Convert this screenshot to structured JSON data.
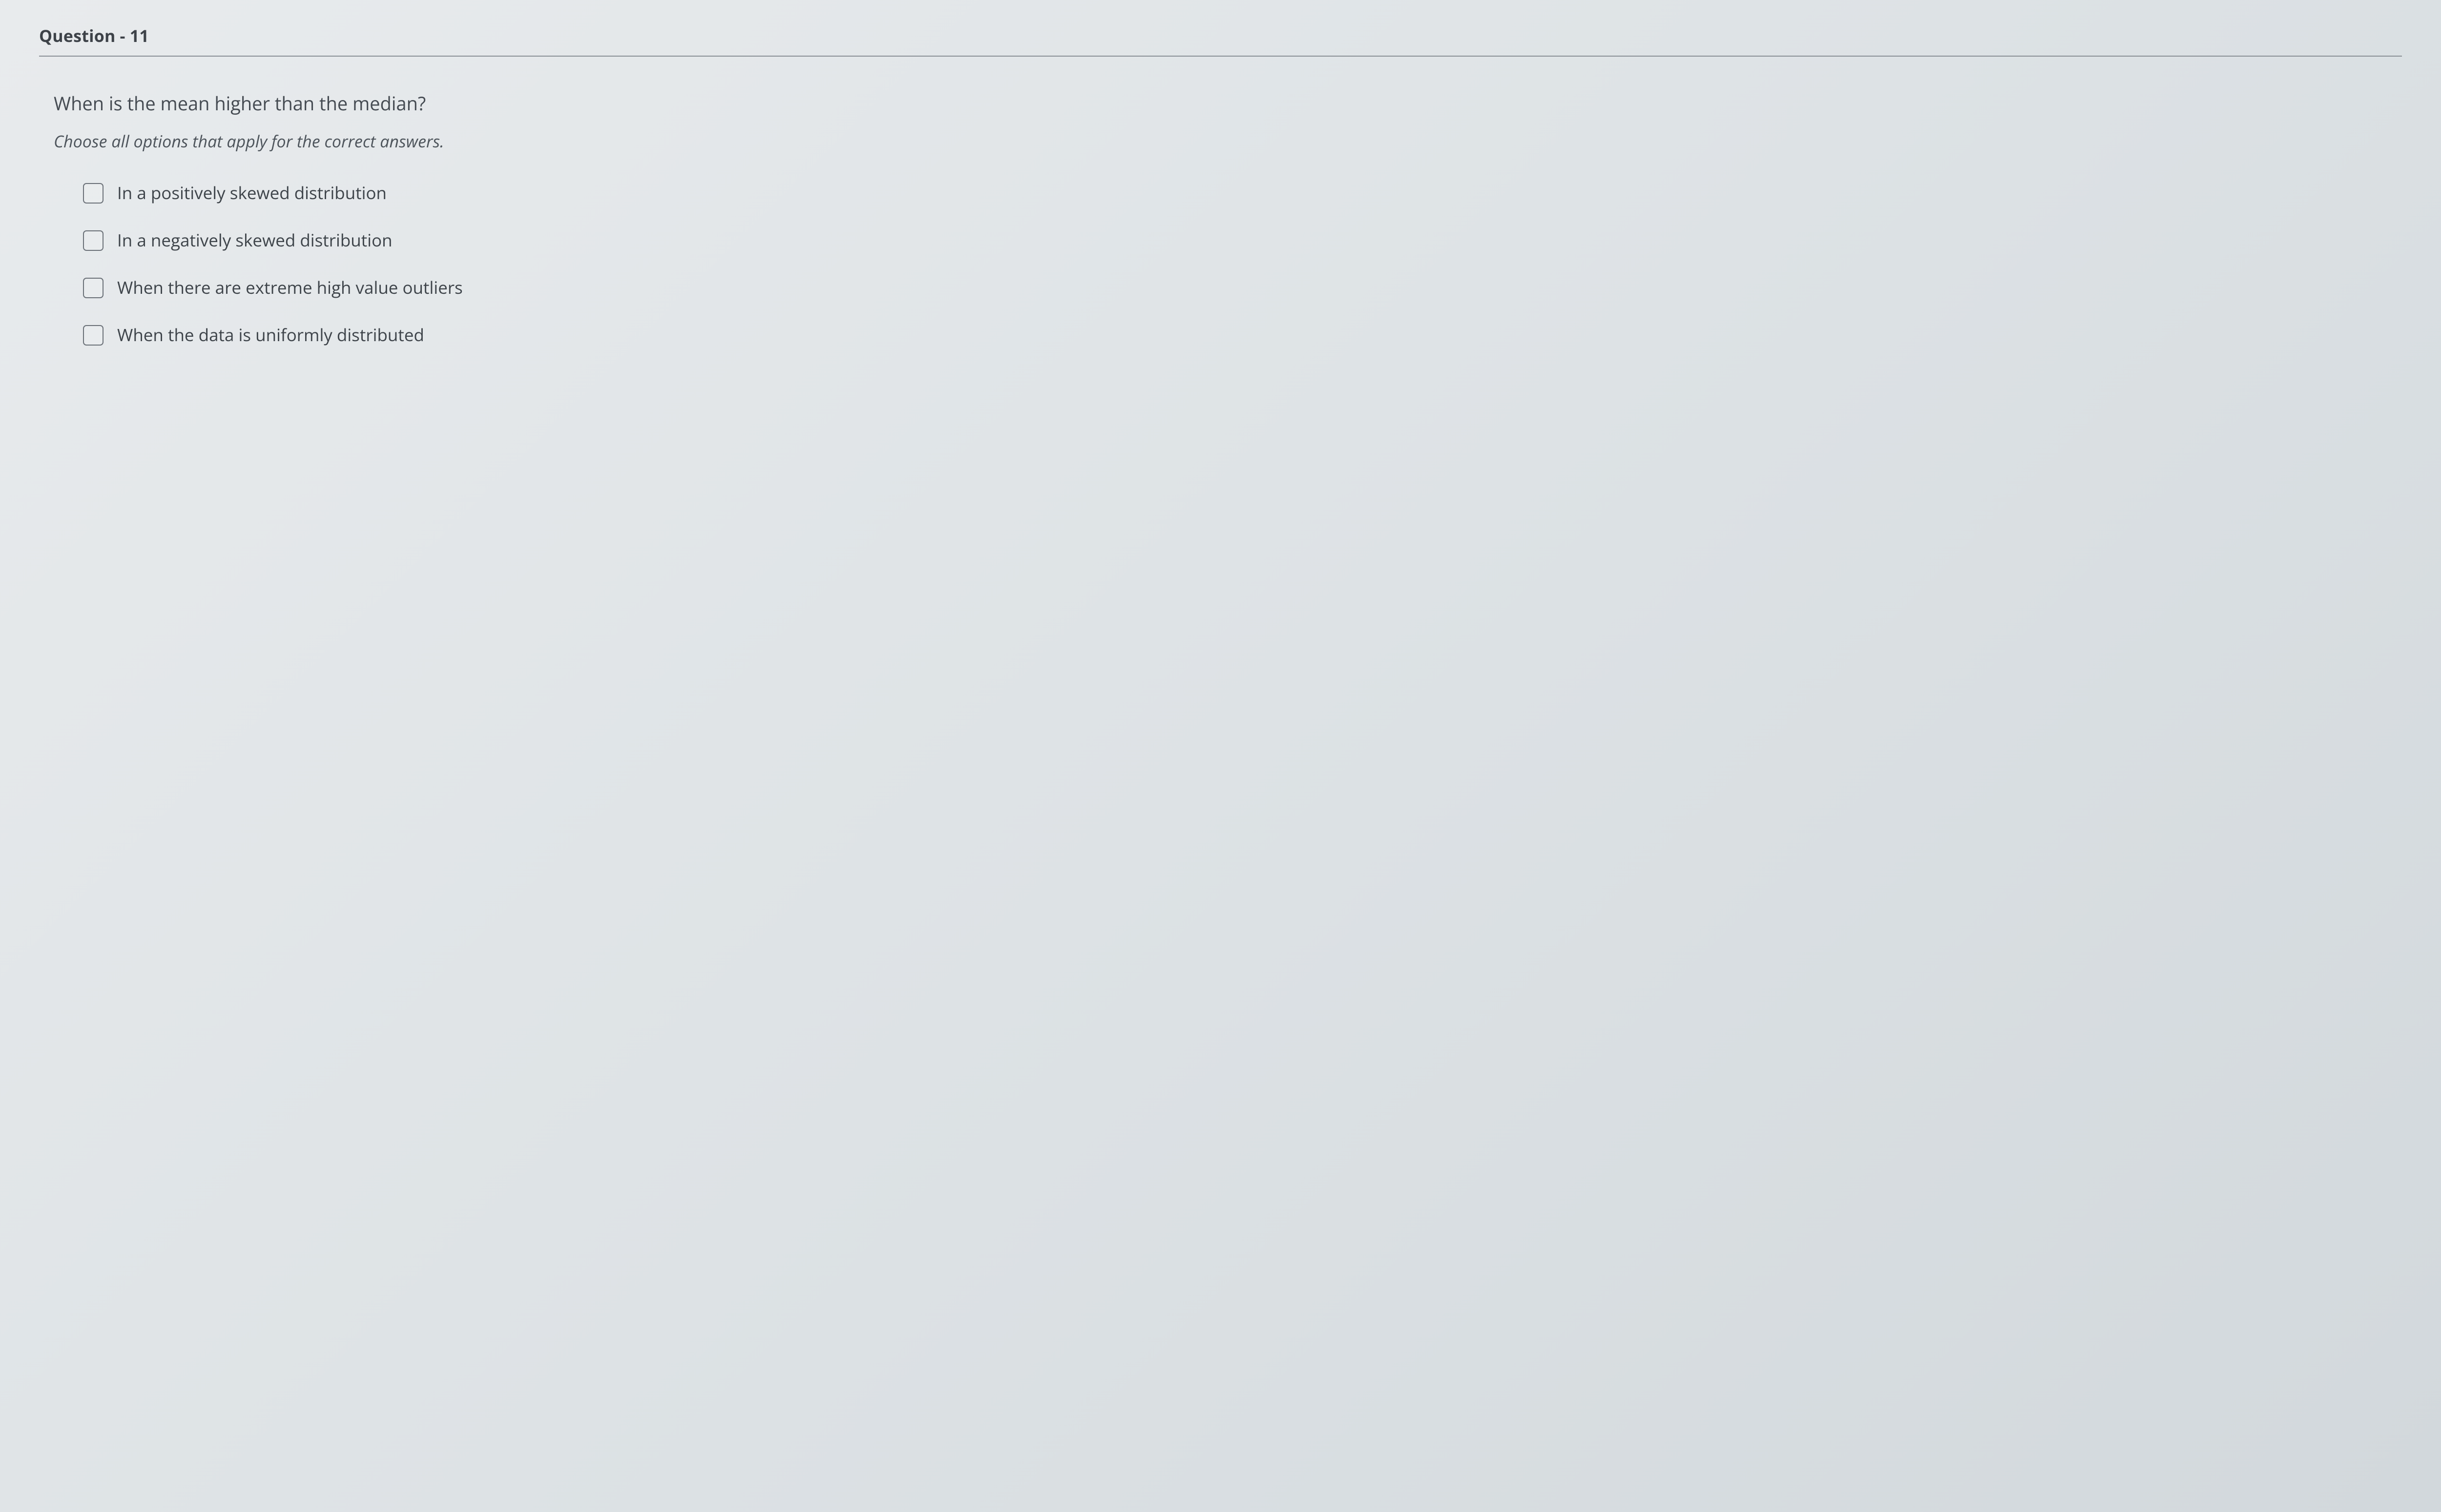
{
  "question": {
    "header": "Question - 11",
    "text": "When is the mean higher than the median?",
    "instruction": "Choose all options that apply for the correct answers.",
    "options": [
      {
        "label": "In a positively skewed distribution",
        "checked": false
      },
      {
        "label": "In a negatively skewed distribution",
        "checked": false
      },
      {
        "label": "When there are extreme high value outliers",
        "checked": false
      },
      {
        "label": "When the data is uniformly distributed",
        "checked": false
      }
    ]
  },
  "style": {
    "background_gradient": [
      "#e8ebed",
      "#dde2e5",
      "#d2d8dc"
    ],
    "text_color": "#3a3f44",
    "header_fontsize": 34,
    "question_fontsize": 38,
    "instruction_fontsize": 34,
    "option_fontsize": 35,
    "checkbox_size": 42,
    "checkbox_border_color": "#6b7178",
    "checkbox_border_radius": 7,
    "divider_color": "#8a9096"
  }
}
